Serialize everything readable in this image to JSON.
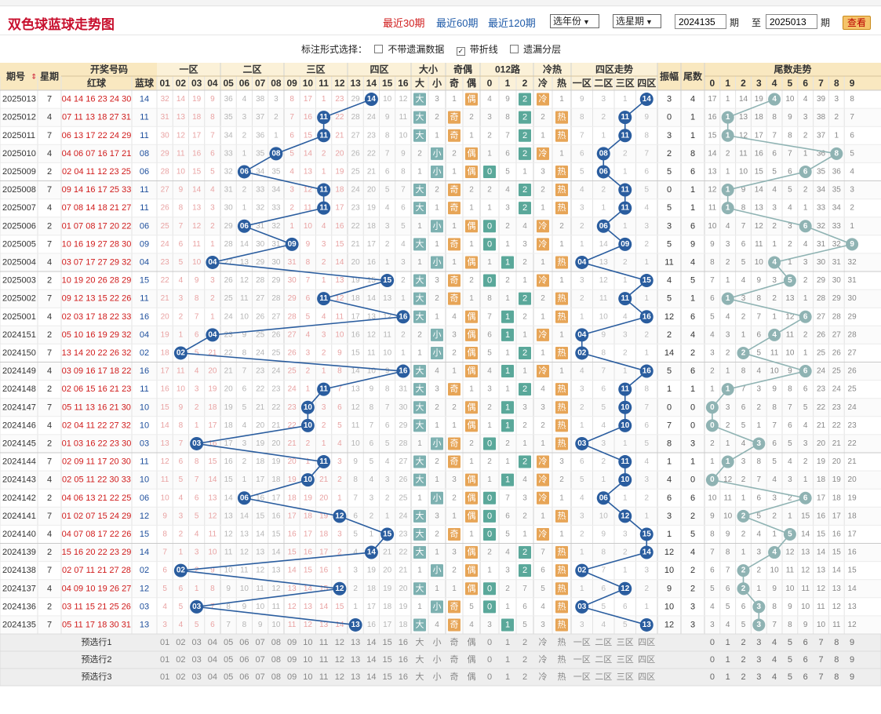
{
  "page_title": "双色球蓝球走势图",
  "period_links": [
    "最近30期",
    "最近60期",
    "最近120期"
  ],
  "year_select": "选年份",
  "period_select": "选星期",
  "range": {
    "from": "2024135",
    "to": "2025013",
    "period_label": "期",
    "to_label": "至",
    "query": "查看"
  },
  "options": {
    "label": "标注形式选择：",
    "no_miss": "不带遗漏数据",
    "with_line": "带折线",
    "miss_layer": "遗漏分层",
    "with_line_checked": true
  },
  "headers": {
    "issue": "期号",
    "week": "星期",
    "draw": "开奖号码",
    "red": "红球",
    "blue": "蓝球",
    "zone1": "一区",
    "zone2": "二区",
    "zone3": "三区",
    "zone4": "四区",
    "size": "大小",
    "small": "小",
    "big": "大",
    "oddeven": "奇偶",
    "odd": "奇",
    "even": "偶",
    "road": "012路",
    "hotcold": "冷热",
    "cold": "冷",
    "hot": "热",
    "zone_trend": "四区走势",
    "z1": "一区",
    "z2": "二区",
    "z3": "三区",
    "z4": "四区",
    "amp": "振幅",
    "tail": "尾数",
    "tail_trend": "尾数走势"
  },
  "footer_labels": [
    "预选行1",
    "预选行2",
    "预选行3"
  ],
  "rows": [
    {
      "issue": "2025013",
      "week": "7",
      "red": "04 14 16 23 24 30",
      "blue": "14",
      "amp": "3",
      "tail": "4"
    },
    {
      "issue": "2025012",
      "week": "4",
      "red": "07 11 13 18 27 31",
      "blue": "11",
      "amp": "0",
      "tail": "1"
    },
    {
      "issue": "2025011",
      "week": "7",
      "red": "06 13 17 22 24 29",
      "blue": "11",
      "amp": "3",
      "tail": "1"
    },
    {
      "issue": "2025010",
      "week": "4",
      "red": "04 06 07 16 17 21",
      "blue": "08",
      "amp": "2",
      "tail": "8"
    },
    {
      "issue": "2025009",
      "week": "2",
      "red": "02 04 11 12 23 25",
      "blue": "06",
      "amp": "5",
      "tail": "6"
    },
    {
      "issue": "2025008",
      "week": "7",
      "red": "09 14 16 17 25 33",
      "blue": "11",
      "amp": "0",
      "tail": "1"
    },
    {
      "issue": "2025007",
      "week": "4",
      "red": "07 08 14 18 21 27",
      "blue": "11",
      "amp": "5",
      "tail": "1"
    },
    {
      "issue": "2025006",
      "week": "2",
      "red": "01 07 08 17 20 22",
      "blue": "06",
      "amp": "3",
      "tail": "6"
    },
    {
      "issue": "2025005",
      "week": "7",
      "red": "10 16 19 27 28 30",
      "blue": "09",
      "amp": "5",
      "tail": "9"
    },
    {
      "issue": "2025004",
      "week": "4",
      "red": "03 07 17 27 29 32",
      "blue": "04",
      "amp": "11",
      "tail": "4"
    },
    {
      "issue": "2025003",
      "week": "2",
      "red": "10 19 20 26 28 29",
      "blue": "15",
      "amp": "4",
      "tail": "5"
    },
    {
      "issue": "2025002",
      "week": "7",
      "red": "09 12 13 15 22 26",
      "blue": "11",
      "amp": "5",
      "tail": "1"
    },
    {
      "issue": "2025001",
      "week": "4",
      "red": "02 03 17 18 22 33",
      "blue": "16",
      "amp": "12",
      "tail": "6"
    },
    {
      "issue": "2024151",
      "week": "2",
      "red": "05 10 16 19 29 32",
      "blue": "04",
      "amp": "2",
      "tail": "4"
    },
    {
      "issue": "2024150",
      "week": "7",
      "red": "13 14 20 22 26 32",
      "blue": "02",
      "amp": "14",
      "tail": "2"
    },
    {
      "issue": "2024149",
      "week": "4",
      "red": "03 09 16 17 18 22",
      "blue": "16",
      "amp": "5",
      "tail": "6"
    },
    {
      "issue": "2024148",
      "week": "2",
      "red": "02 06 15 16 21 23",
      "blue": "11",
      "amp": "1",
      "tail": "1"
    },
    {
      "issue": "2024147",
      "week": "7",
      "red": "05 11 13 16 21 30",
      "blue": "10",
      "amp": "0",
      "tail": "0"
    },
    {
      "issue": "2024146",
      "week": "4",
      "red": "02 04 11 22 27 32",
      "blue": "10",
      "amp": "7",
      "tail": "0"
    },
    {
      "issue": "2024145",
      "week": "2",
      "red": "01 03 16 22 23 30",
      "blue": "03",
      "amp": "8",
      "tail": "3"
    },
    {
      "issue": "2024144",
      "week": "7",
      "red": "02 09 11 17 20 30",
      "blue": "11",
      "amp": "1",
      "tail": "1"
    },
    {
      "issue": "2024143",
      "week": "4",
      "red": "02 05 11 22 30 33",
      "blue": "10",
      "amp": "4",
      "tail": "0"
    },
    {
      "issue": "2024142",
      "week": "2",
      "red": "04 06 13 21 22 25",
      "blue": "06",
      "amp": "6",
      "tail": "6"
    },
    {
      "issue": "2024141",
      "week": "7",
      "red": "01 02 07 15 24 29",
      "blue": "12",
      "amp": "3",
      "tail": "2"
    },
    {
      "issue": "2024140",
      "week": "4",
      "red": "04 07 08 17 22 26",
      "blue": "15",
      "amp": "1",
      "tail": "5"
    },
    {
      "issue": "2024139",
      "week": "2",
      "red": "15 16 20 22 23 29",
      "blue": "14",
      "amp": "12",
      "tail": "4"
    },
    {
      "issue": "2024138",
      "week": "7",
      "red": "02 07 11 21 27 28",
      "blue": "02",
      "amp": "10",
      "tail": "2"
    },
    {
      "issue": "2024137",
      "week": "4",
      "red": "04 09 10 19 26 27",
      "blue": "12",
      "amp": "9",
      "tail": "2"
    },
    {
      "issue": "2024136",
      "week": "2",
      "red": "03 11 15 21 25 26",
      "blue": "03",
      "amp": "10",
      "tail": "3"
    },
    {
      "issue": "2024135",
      "week": "7",
      "red": "05 11 17 18 30 31",
      "blue": "13",
      "amp": "12",
      "tail": "3"
    }
  ]
}
